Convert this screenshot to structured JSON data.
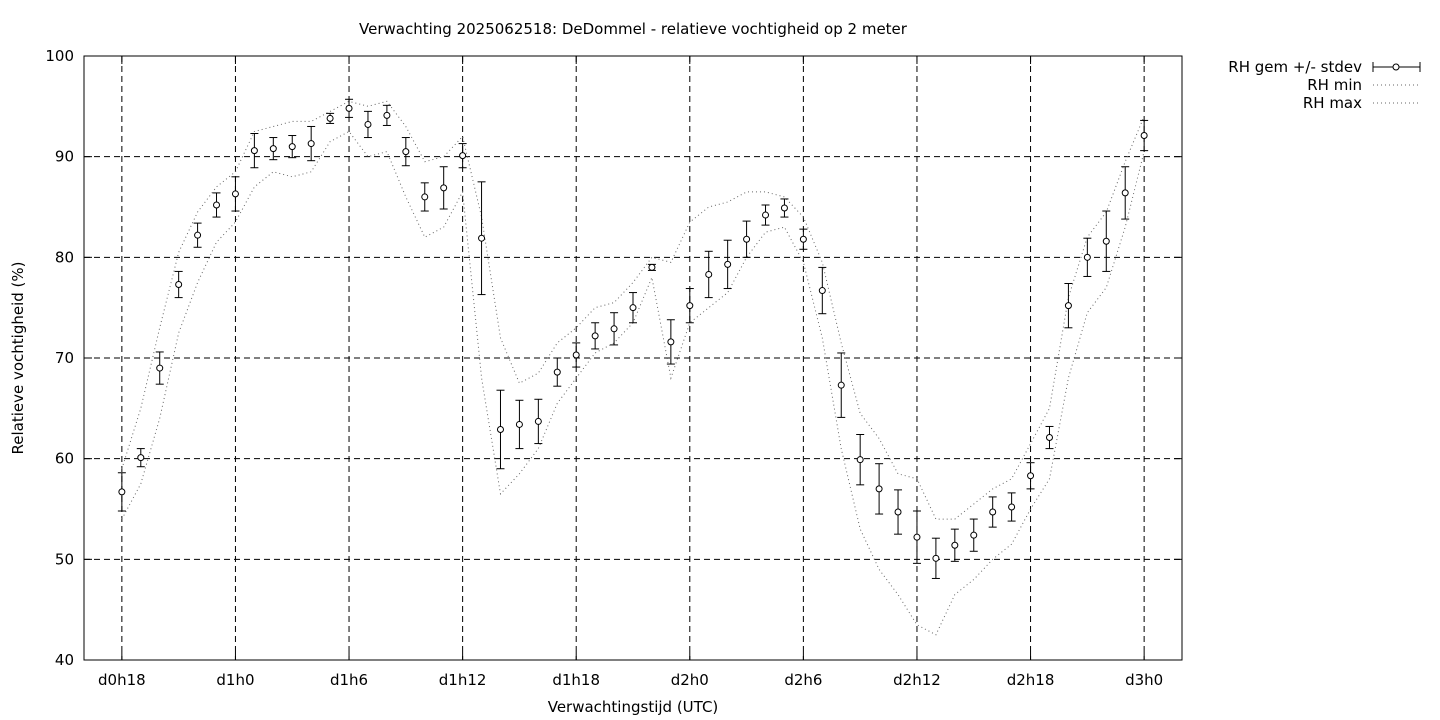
{
  "chart_data": {
    "type": "line",
    "title": "Verwachting 2025062518: DeDommel - relatieve vochtigheid op 2 meter",
    "xlabel": "Verwachtingstijd (UTC)",
    "ylabel": "Relatieve vochtigheid (%)",
    "x_unit": "hours since d0h18",
    "xlim": [
      -2,
      56
    ],
    "ylim": [
      40,
      100
    ],
    "grid": true,
    "legend_position": "outside-top-right",
    "x_ticks": [
      {
        "value": 0,
        "label": "d0h18"
      },
      {
        "value": 6,
        "label": "d1h0"
      },
      {
        "value": 12,
        "label": "d1h6"
      },
      {
        "value": 18,
        "label": "d1h12"
      },
      {
        "value": 24,
        "label": "d1h18"
      },
      {
        "value": 30,
        "label": "d2h0"
      },
      {
        "value": 36,
        "label": "d2h6"
      },
      {
        "value": 42,
        "label": "d2h12"
      },
      {
        "value": 48,
        "label": "d2h18"
      },
      {
        "value": 54,
        "label": "d3h0"
      }
    ],
    "y_ticks": [
      40,
      50,
      60,
      70,
      80,
      90,
      100
    ],
    "x": [
      0,
      1,
      2,
      3,
      4,
      5,
      6,
      7,
      8,
      9,
      10,
      11,
      12,
      13,
      14,
      15,
      16,
      17,
      18,
      19,
      20,
      21,
      22,
      23,
      24,
      25,
      26,
      27,
      28,
      29,
      30,
      31,
      32,
      33,
      34,
      35,
      36,
      37,
      38,
      39,
      40,
      41,
      42,
      43,
      44,
      45,
      46,
      47,
      48,
      49,
      50,
      51,
      52,
      53,
      54
    ],
    "series": [
      {
        "name": "RH gem +/- stdev",
        "style": "points-errorbars",
        "mean": [
          56.7,
          60.1,
          69.0,
          77.3,
          82.2,
          85.2,
          86.3,
          90.6,
          90.8,
          91.0,
          91.3,
          93.8,
          94.8,
          93.2,
          94.1,
          90.5,
          86.0,
          86.9,
          90.1,
          81.9,
          62.9,
          63.4,
          63.7,
          68.6,
          70.3,
          72.2,
          72.9,
          75.0,
          79.0,
          71.6,
          75.2,
          78.3,
          79.3,
          81.8,
          84.2,
          84.9,
          81.8,
          76.7,
          67.3,
          59.9,
          57.0,
          54.7,
          52.2,
          50.1,
          51.4,
          52.4,
          54.7,
          55.2,
          58.3,
          62.1,
          75.2,
          80.0,
          81.6,
          86.4,
          92.1
        ],
        "stdev": [
          1.9,
          0.9,
          1.6,
          1.3,
          1.2,
          1.2,
          1.7,
          1.7,
          1.1,
          1.1,
          1.7,
          0.5,
          0.9,
          1.3,
          1.0,
          1.4,
          1.4,
          2.1,
          1.2,
          5.6,
          3.9,
          2.4,
          2.2,
          1.4,
          1.2,
          1.3,
          1.6,
          1.5,
          0.3,
          2.2,
          1.7,
          2.3,
          2.4,
          1.8,
          1.0,
          0.9,
          1.0,
          2.3,
          3.2,
          2.5,
          2.5,
          2.2,
          2.6,
          2.0,
          1.6,
          1.6,
          1.5,
          1.4,
          1.3,
          1.1,
          2.2,
          1.9,
          3.0,
          2.6,
          1.5
        ]
      },
      {
        "name": "RH min",
        "style": "dotted",
        "values": [
          54.0,
          57.5,
          64.0,
          72.5,
          77.5,
          81.5,
          83.5,
          87.0,
          88.5,
          88.0,
          88.5,
          91.5,
          92.5,
          90.0,
          90.5,
          86.0,
          82.0,
          83.0,
          86.5,
          68.0,
          56.5,
          58.5,
          61.0,
          65.5,
          68.0,
          70.5,
          71.5,
          73.5,
          78.0,
          68.0,
          73.5,
          75.0,
          76.5,
          80.0,
          82.5,
          83.0,
          79.5,
          72.0,
          61.0,
          53.0,
          49.0,
          46.5,
          43.5,
          42.5,
          46.5,
          48.0,
          50.0,
          51.5,
          55.0,
          58.0,
          68.0,
          74.5,
          77.0,
          83.0,
          90.5
        ]
      },
      {
        "name": "RH max",
        "style": "dotted",
        "values": [
          59.0,
          65.0,
          73.0,
          80.5,
          84.5,
          87.0,
          88.5,
          92.5,
          93.0,
          93.5,
          93.5,
          94.5,
          95.5,
          95.0,
          95.5,
          93.0,
          89.5,
          90.0,
          92.0,
          84.0,
          72.0,
          67.5,
          68.5,
          71.5,
          73.0,
          75.0,
          75.5,
          77.5,
          80.0,
          79.5,
          83.5,
          85.0,
          85.5,
          86.5,
          86.5,
          86.0,
          84.0,
          79.5,
          71.5,
          64.5,
          62.0,
          58.5,
          58.0,
          54.0,
          54.0,
          55.5,
          57.0,
          58.0,
          61.5,
          65.0,
          76.0,
          82.0,
          84.5,
          89.5,
          94.0
        ]
      }
    ]
  }
}
